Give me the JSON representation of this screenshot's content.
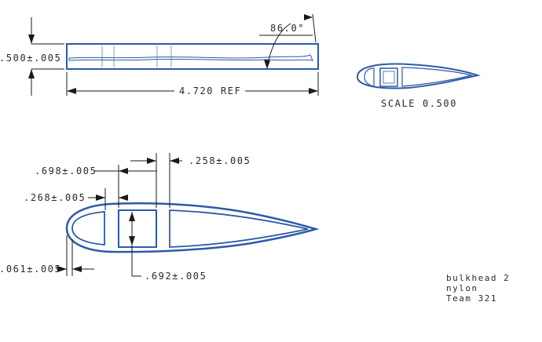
{
  "top_view": {
    "thickness_dim": ".500±.005",
    "angle_dim": "86.0°",
    "length_dim": "4.720 REF"
  },
  "iso_view": {
    "scale_label": "SCALE 0.500"
  },
  "section_view": {
    "dim_698": ".698±.005",
    "dim_258": ".258±.005",
    "dim_268": ".268±.005",
    "dim_061": ".061±.005",
    "dim_692": ".692±.005"
  },
  "notes": {
    "line1": "bulkhead 2",
    "line2": "nylon",
    "line3": "Team 321"
  },
  "colors": {
    "part_outline": "#2d5aa8",
    "dimension_lines": "#1a1a1a"
  }
}
